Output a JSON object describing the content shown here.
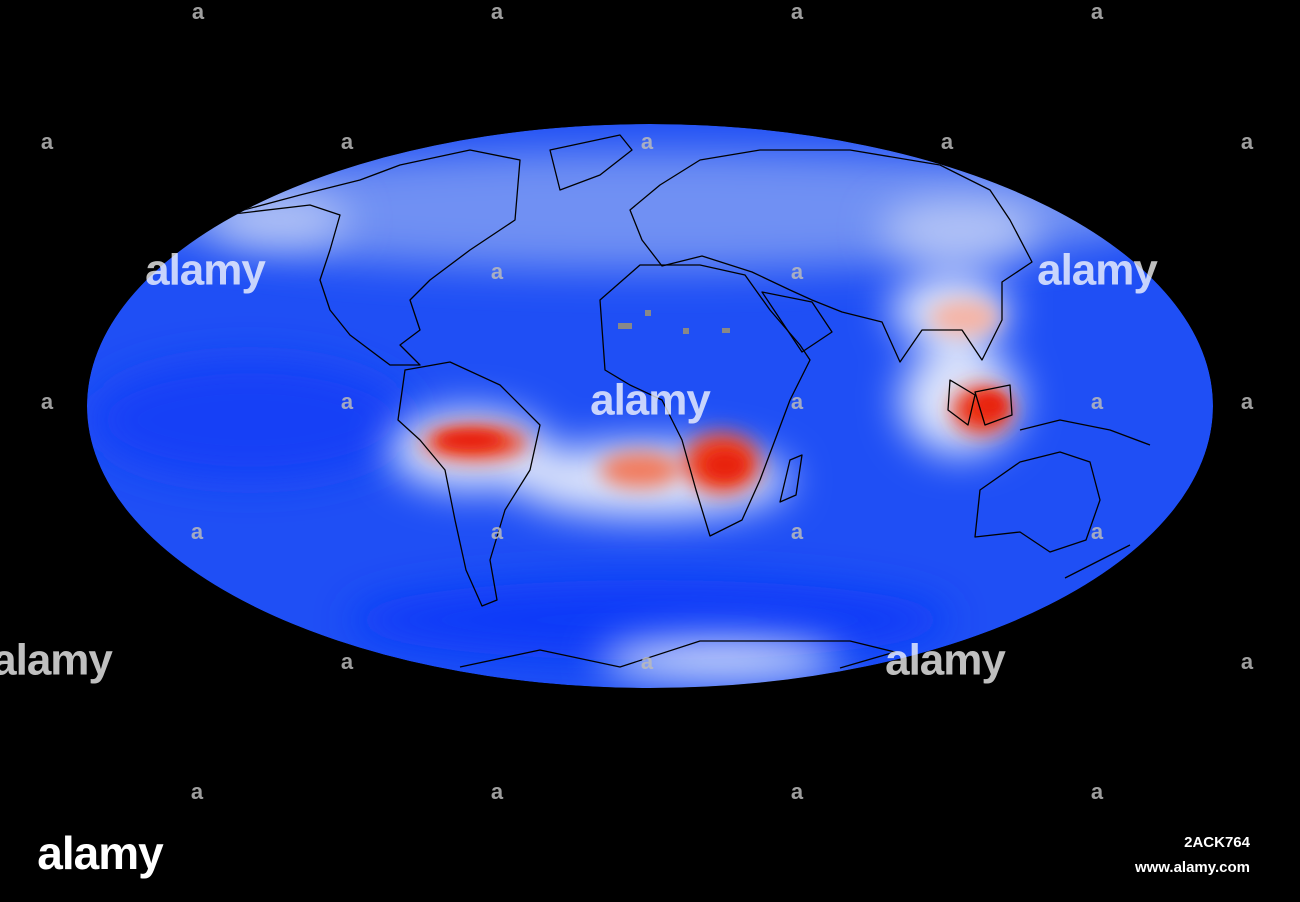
{
  "watermark": {
    "word": "alamy",
    "letter": "a"
  },
  "footer": {
    "logo": "alamy",
    "image_id": "2ACK764",
    "url": "www.alamy.com"
  }
}
